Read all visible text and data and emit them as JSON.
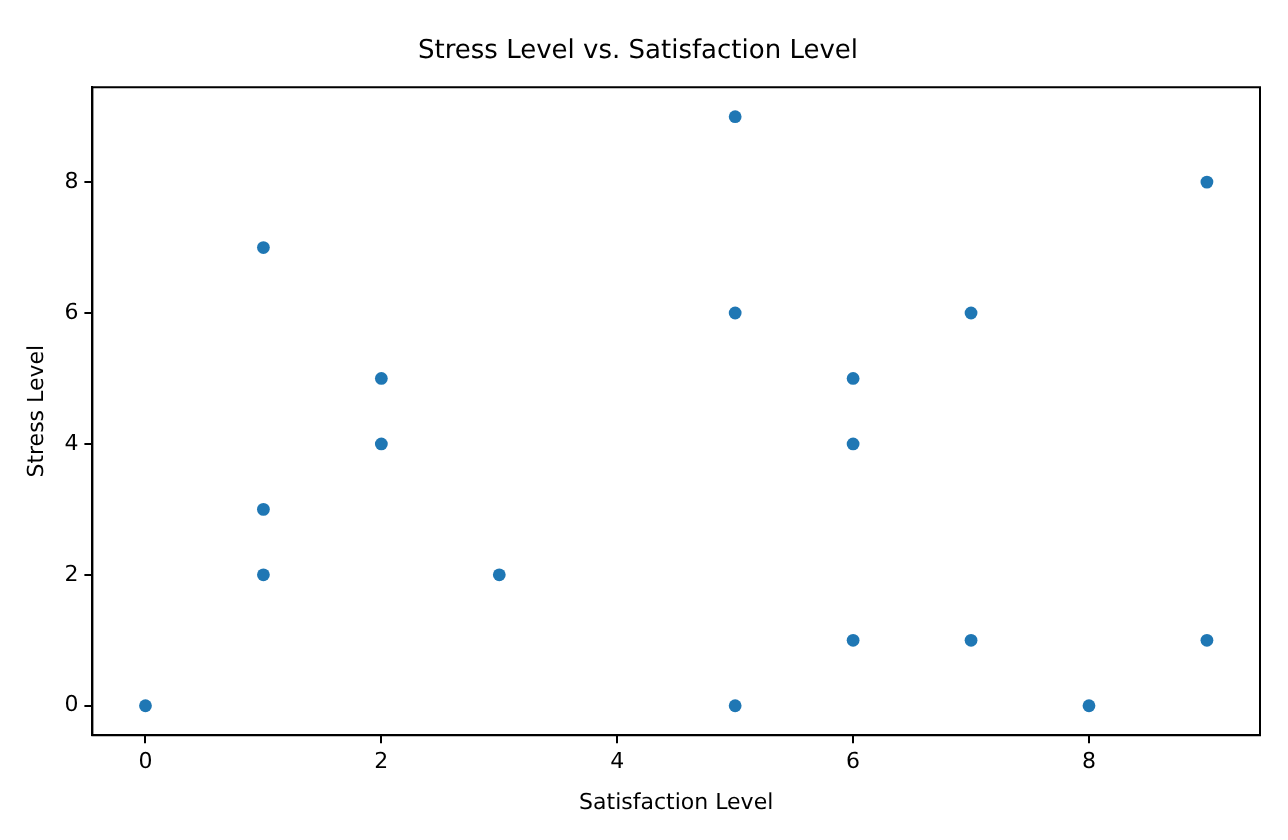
{
  "chart_data": {
    "type": "scatter",
    "title": "Stress Level vs. Satisfaction Level",
    "xlabel": "Satisfaction Level",
    "ylabel": "Stress Level",
    "series": [
      {
        "color": "#1f77b4",
        "x": [
          0,
          1,
          1,
          1,
          2,
          2,
          3,
          5,
          5,
          5,
          6,
          6,
          6,
          7,
          7,
          8,
          9,
          9
        ],
        "values": [
          0,
          7,
          3,
          2,
          5,
          4,
          2,
          9,
          6,
          0,
          5,
          4,
          1,
          6,
          1,
          0,
          8,
          1
        ]
      }
    ],
    "xlim": [
      -0.45,
      9.45
    ],
    "ylim": [
      -0.45,
      9.45
    ],
    "xticks": [
      0,
      2,
      4,
      6,
      8
    ],
    "yticks": [
      0,
      2,
      4,
      6,
      8
    ],
    "grid": false,
    "legend": false,
    "marker": "circle"
  }
}
